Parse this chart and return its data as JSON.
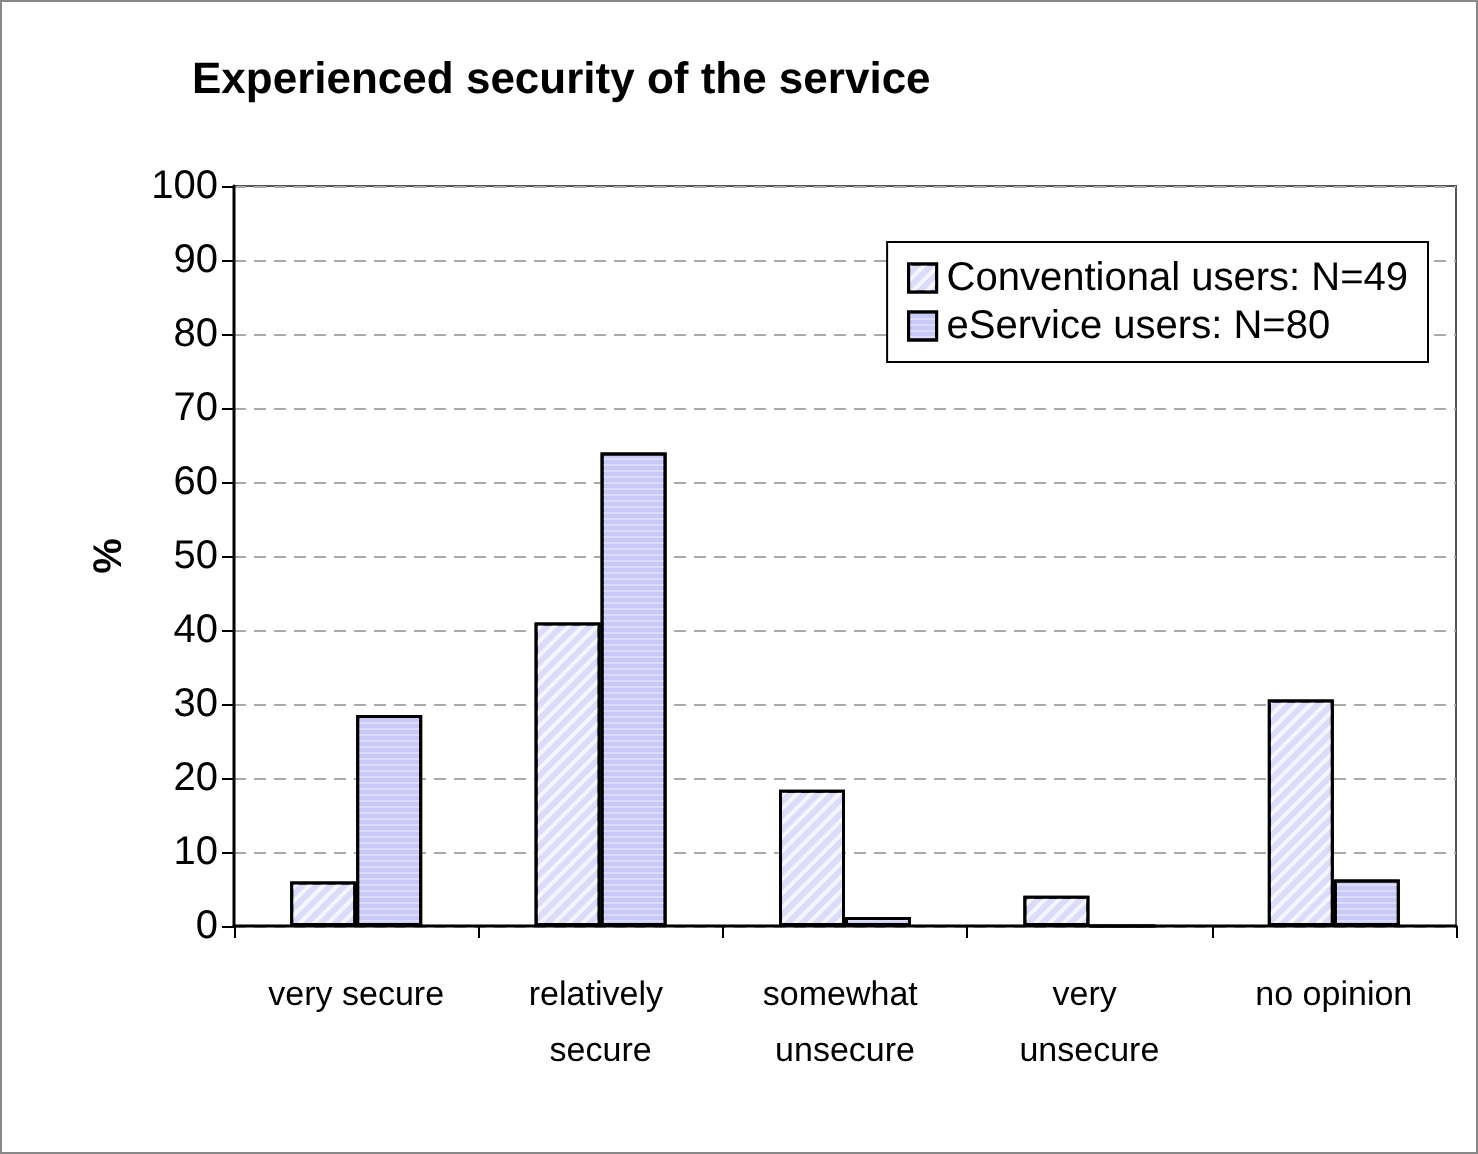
{
  "chart_data": {
    "type": "bar",
    "title": "Experienced security of the service",
    "ylabel": "%",
    "categories": [
      "very secure",
      "relatively secure",
      "somewhat unsecure",
      "very unsecure",
      "no opinion"
    ],
    "series": [
      {
        "name": "Conventional users: N=49",
        "color": "#dcdcfa",
        "values": [
          6,
          41,
          18.4,
          4.1,
          30.6
        ]
      },
      {
        "name": "eService users: N=80",
        "color": "#c9c9f8",
        "values": [
          28.5,
          64,
          1.2,
          0,
          6.3
        ]
      }
    ],
    "ylim": [
      0,
      100
    ],
    "yticks": [
      0,
      10,
      20,
      30,
      40,
      50,
      60,
      70,
      80,
      90,
      100
    ],
    "grid": "y",
    "legend": "top right"
  }
}
